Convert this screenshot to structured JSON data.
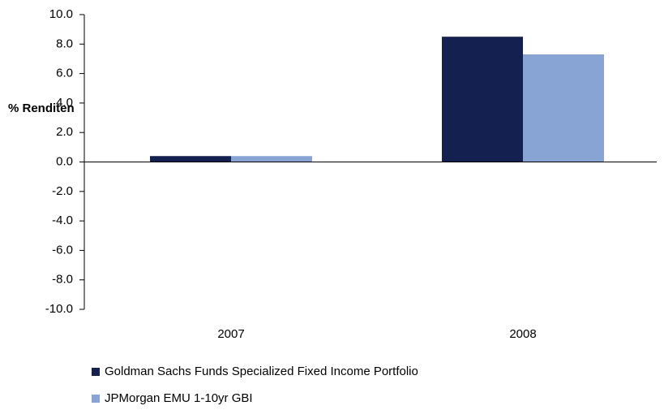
{
  "chart_data": {
    "type": "bar",
    "y_label": "% Renditen",
    "categories": [
      "2007",
      "2008"
    ],
    "series": [
      {
        "name": "Goldman Sachs Funds Specialized Fixed Income Portfolio",
        "color": "#14204f",
        "values": [
          0.4,
          8.5
        ]
      },
      {
        "name": "JPMorgan EMU 1-10yr GBI",
        "color": "#87a4d4",
        "values": [
          0.4,
          7.3
        ]
      }
    ],
    "ylim": [
      -10,
      10
    ],
    "yticks": [
      {
        "value": -10,
        "label": "-10.0"
      },
      {
        "value": -8,
        "label": "-8.0"
      },
      {
        "value": -6,
        "label": "-6.0"
      },
      {
        "value": -4,
        "label": "-4.0"
      },
      {
        "value": -2,
        "label": "-2.0"
      },
      {
        "value": 0,
        "label": "0.0"
      },
      {
        "value": 2,
        "label": "2.0"
      },
      {
        "value": 4,
        "label": "4.0"
      },
      {
        "value": 6,
        "label": "6.0"
      },
      {
        "value": 8,
        "label": "8.0"
      },
      {
        "value": 10,
        "label": "10.0"
      }
    ],
    "grid": false
  }
}
